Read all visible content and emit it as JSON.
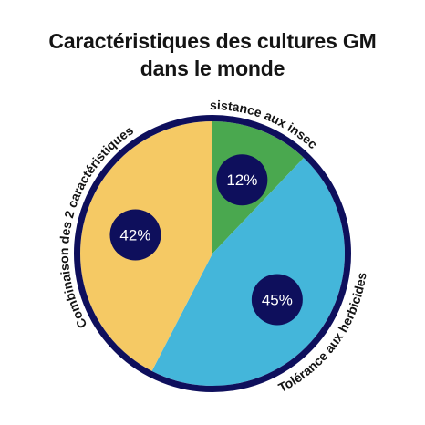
{
  "chart_data": {
    "type": "pie",
    "title_lines": [
      "Caractéristiques des cultures GM",
      "dans le monde"
    ],
    "slices": [
      {
        "label": "Résistance aux insectes",
        "value": 12,
        "value_label": "12%",
        "color": "#4aa84f"
      },
      {
        "label": "Tolérance aux herbicides",
        "value": 45,
        "value_label": "45%",
        "color": "#44b6da"
      },
      {
        "label": "Combinaison des 2 caractéristiques",
        "value": 42,
        "value_label": "42%",
        "color": "#f5c964"
      }
    ],
    "border_color": "#0e0f5c",
    "badge_color": "#0e0f5c",
    "badge_text_color": "#ffffff",
    "label_color": "#141414"
  }
}
